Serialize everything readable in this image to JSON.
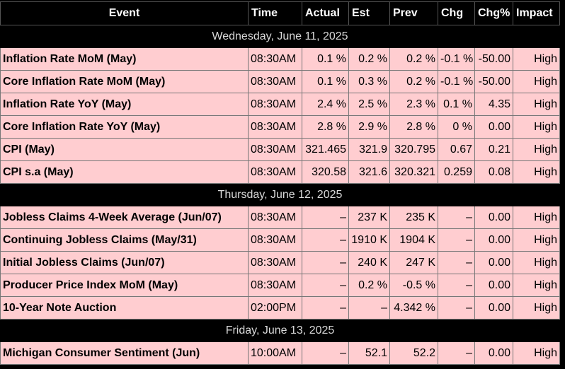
{
  "headers": [
    "Event",
    "Time",
    "Actual",
    "Est",
    "Prev",
    "Chg",
    "Chg%",
    "Impact"
  ],
  "days": [
    {
      "date": "Wednesday, June 11, 2025",
      "rows": [
        [
          "Inflation Rate MoM (May)",
          "08:30AM",
          "0.1 %",
          "0.2 %",
          "0.2 %",
          "-0.1 %",
          "-50.00",
          "High"
        ],
        [
          "Core Inflation Rate MoM (May)",
          "08:30AM",
          "0.1 %",
          "0.3 %",
          "0.2 %",
          "-0.1 %",
          "-50.00",
          "High"
        ],
        [
          "Inflation Rate YoY (May)",
          "08:30AM",
          "2.4 %",
          "2.5 %",
          "2.3 %",
          "0.1 %",
          "4.35",
          "High"
        ],
        [
          "Core Inflation Rate YoY (May)",
          "08:30AM",
          "2.8 %",
          "2.9 %",
          "2.8 %",
          "0 %",
          "0.00",
          "High"
        ],
        [
          "CPI (May)",
          "08:30AM",
          "321.465",
          "321.9",
          "320.795",
          "0.67",
          "0.21",
          "High"
        ],
        [
          "CPI s.a (May)",
          "08:30AM",
          "320.58",
          "321.6",
          "320.321",
          "0.259",
          "0.08",
          "High"
        ]
      ]
    },
    {
      "date": "Thursday, June 12, 2025",
      "rows": [
        [
          "Jobless Claims 4-Week Average (Jun/07)",
          "08:30AM",
          "–",
          "237 K",
          "235 K",
          "–",
          "0.00",
          "High"
        ],
        [
          "Continuing Jobless Claims (May/31)",
          "08:30AM",
          "–",
          "1910 K",
          "1904 K",
          "–",
          "0.00",
          "High"
        ],
        [
          "Initial Jobless Claims (Jun/07)",
          "08:30AM",
          "–",
          "240 K",
          "247 K",
          "–",
          "0.00",
          "High"
        ],
        [
          "Producer Price Index MoM (May)",
          "08:30AM",
          "–",
          "0.2 %",
          "-0.5 %",
          "–",
          "0.00",
          "High"
        ],
        [
          "10-Year Note Auction",
          "02:00PM",
          "–",
          "–",
          "4.342 %",
          "–",
          "0.00",
          "High"
        ]
      ]
    },
    {
      "date": "Friday, June 13, 2025",
      "rows": [
        [
          "Michigan Consumer Sentiment (Jun)",
          "10:00AM",
          "–",
          "52.1",
          "52.2",
          "–",
          "0.00",
          "High"
        ]
      ]
    }
  ],
  "colors": {
    "row_bg": "#ffcdd0",
    "header_bg": "#000000",
    "date_text": "#d9d9d9"
  }
}
